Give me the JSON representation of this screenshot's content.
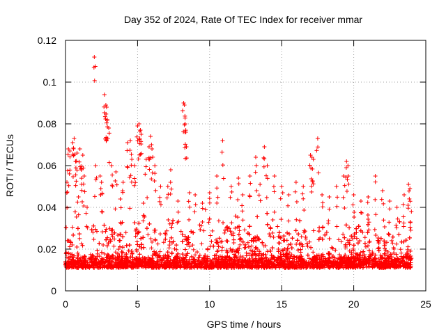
{
  "chart_data": {
    "type": "scatter",
    "title": "Day 352 of 2024, Rate Of TEC Index for receiver mmar",
    "xlabel": "GPS time / hours",
    "ylabel": "ROTI / TECUs",
    "xlim": [
      0,
      25
    ],
    "ylim": [
      0,
      0.12
    ],
    "x_ticks": [
      "0",
      "5",
      "10",
      "15",
      "20",
      "25"
    ],
    "y_ticks": [
      "0",
      "0.02",
      "0.04",
      "0.06",
      "0.08",
      "0.1",
      "0.12"
    ],
    "x_tick_values": [
      0,
      5,
      10,
      15,
      20,
      25
    ],
    "y_tick_values": [
      0,
      0.02,
      0.04,
      0.06,
      0.08,
      0.1,
      0.12
    ],
    "grid": true,
    "marker": "+",
    "color": "#ff0000",
    "x_range_of_points": [
      0,
      24
    ],
    "series": [
      {
        "points": [
          [
            0.1,
            0.052
          ],
          [
            0.2,
            0.068
          ],
          [
            0.3,
            0.067
          ],
          [
            0.5,
            0.071
          ],
          [
            0.6,
            0.073
          ],
          [
            0.7,
            0.062
          ],
          [
            0.8,
            0.066
          ],
          [
            0.9,
            0.045
          ],
          [
            1.0,
            0.068
          ],
          [
            1.1,
            0.058
          ],
          [
            1.2,
            0.065
          ],
          [
            1.3,
            0.055
          ],
          [
            1.5,
            0.04
          ],
          [
            2.0,
            0.112
          ],
          [
            2.1,
            0.06
          ],
          [
            2.4,
            0.055
          ],
          [
            2.5,
            0.052
          ],
          [
            2.7,
            0.094
          ],
          [
            2.8,
            0.089
          ],
          [
            2.85,
            0.088
          ],
          [
            2.9,
            0.082
          ],
          [
            3.0,
            0.078
          ],
          [
            3.2,
            0.06
          ],
          [
            3.5,
            0.057
          ],
          [
            3.8,
            0.044
          ],
          [
            4.0,
            0.052
          ],
          [
            4.3,
            0.071
          ],
          [
            4.5,
            0.072
          ],
          [
            4.6,
            0.063
          ],
          [
            4.8,
            0.06
          ],
          [
            5.0,
            0.079
          ],
          [
            5.1,
            0.08
          ],
          [
            5.2,
            0.077
          ],
          [
            5.25,
            0.075
          ],
          [
            5.4,
            0.042
          ],
          [
            5.6,
            0.063
          ],
          [
            5.8,
            0.069
          ],
          [
            5.9,
            0.074
          ],
          [
            6.0,
            0.068
          ],
          [
            6.2,
            0.06
          ],
          [
            6.6,
            0.05
          ],
          [
            7.1,
            0.05
          ],
          [
            7.3,
            0.058
          ],
          [
            7.8,
            0.043
          ],
          [
            8.2,
            0.09
          ],
          [
            8.25,
            0.089
          ],
          [
            8.3,
            0.08
          ],
          [
            8.35,
            0.076
          ],
          [
            8.6,
            0.047
          ],
          [
            9.0,
            0.046
          ],
          [
            9.5,
            0.042
          ],
          [
            10.0,
            0.047
          ],
          [
            10.5,
            0.055
          ],
          [
            10.9,
            0.072
          ],
          [
            11.5,
            0.05
          ],
          [
            12.0,
            0.054
          ],
          [
            12.3,
            0.046
          ],
          [
            12.8,
            0.055
          ],
          [
            13.2,
            0.064
          ],
          [
            13.5,
            0.051
          ],
          [
            13.8,
            0.069
          ],
          [
            14.0,
            0.06
          ],
          [
            14.5,
            0.055
          ],
          [
            15.0,
            0.05
          ],
          [
            15.5,
            0.046
          ],
          [
            16.0,
            0.052
          ],
          [
            16.5,
            0.05
          ],
          [
            17.0,
            0.065
          ],
          [
            17.1,
            0.064
          ],
          [
            17.2,
            0.063
          ],
          [
            17.5,
            0.073
          ],
          [
            17.8,
            0.046
          ],
          [
            18.3,
            0.045
          ],
          [
            18.8,
            0.05
          ],
          [
            19.3,
            0.055
          ],
          [
            19.5,
            0.062
          ],
          [
            19.6,
            0.06
          ],
          [
            20.0,
            0.046
          ],
          [
            20.5,
            0.043
          ],
          [
            21.0,
            0.045
          ],
          [
            21.5,
            0.055
          ],
          [
            22.0,
            0.048
          ],
          [
            22.5,
            0.043
          ],
          [
            23.0,
            0.04
          ],
          [
            23.5,
            0.046
          ],
          [
            23.8,
            0.051
          ],
          [
            23.9,
            0.049
          ],
          [
            24.0,
            0.038
          ]
        ]
      }
    ]
  }
}
